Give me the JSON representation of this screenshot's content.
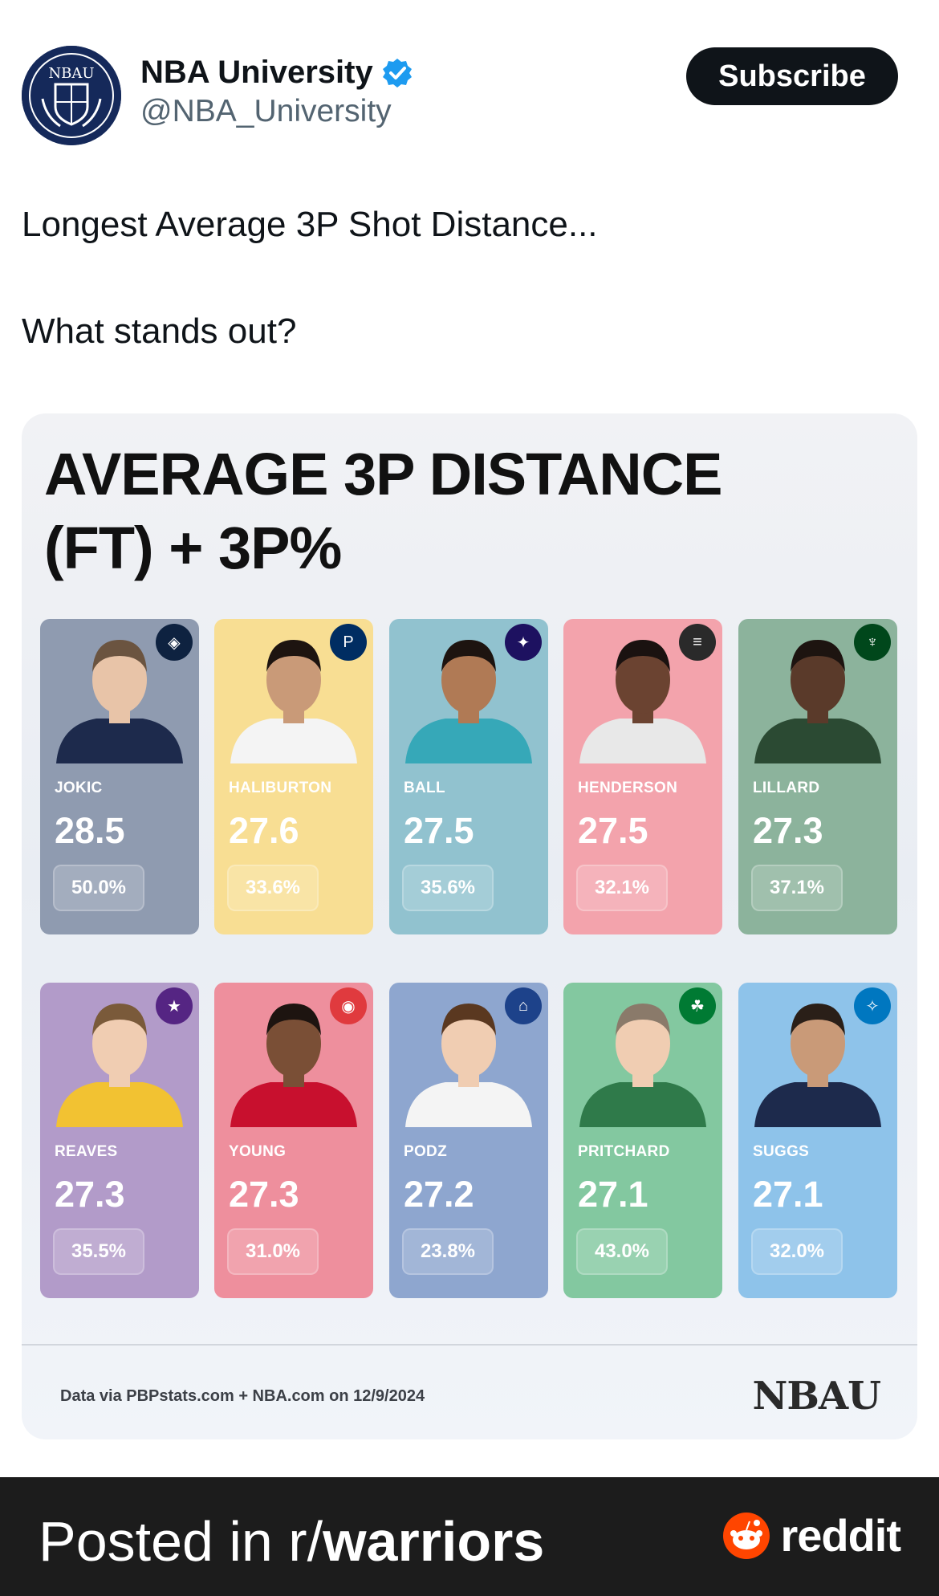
{
  "post": {
    "display_name": "NBA University",
    "handle": "@NBA_University",
    "subscribe_label": "Subscribe",
    "text_line1": "Longest Average 3P Shot Distance...",
    "text_line2": "What stands out?"
  },
  "graphic": {
    "title_line1": "AVERAGE 3P DISTANCE",
    "title_line2": "(FT) + 3P%",
    "source": "Data via PBPstats.com + NBA.com on 12/9/2024",
    "brand": "NBAU",
    "players": [
      {
        "name": "JOKIC",
        "distance": "28.5",
        "pct": "50.0%",
        "color": "#8f9bb0"
      },
      {
        "name": "HALIBURTON",
        "distance": "27.6",
        "pct": "33.6%",
        "color": "#f8de93"
      },
      {
        "name": "BALL",
        "distance": "27.5",
        "pct": "35.6%",
        "color": "#91c2cf"
      },
      {
        "name": "HENDERSON",
        "distance": "27.5",
        "pct": "32.1%",
        "color": "#f3a3ac"
      },
      {
        "name": "LILLARD",
        "distance": "27.3",
        "pct": "37.1%",
        "color": "#8cb39c"
      },
      {
        "name": "REAVES",
        "distance": "27.3",
        "pct": "35.5%",
        "color": "#b29bc9"
      },
      {
        "name": "YOUNG",
        "distance": "27.3",
        "pct": "31.0%",
        "color": "#ee8f9d"
      },
      {
        "name": "PODZ",
        "distance": "27.2",
        "pct": "23.8%",
        "color": "#8ea6cf"
      },
      {
        "name": "PRITCHARD",
        "distance": "27.1",
        "pct": "43.0%",
        "color": "#83c8a0"
      },
      {
        "name": "SUGGS",
        "distance": "27.1",
        "pct": "32.0%",
        "color": "#8ec3ea"
      }
    ]
  },
  "footer": {
    "posted_in": "Posted in r/",
    "subreddit": "warriors",
    "reddit_word": "reddit"
  }
}
